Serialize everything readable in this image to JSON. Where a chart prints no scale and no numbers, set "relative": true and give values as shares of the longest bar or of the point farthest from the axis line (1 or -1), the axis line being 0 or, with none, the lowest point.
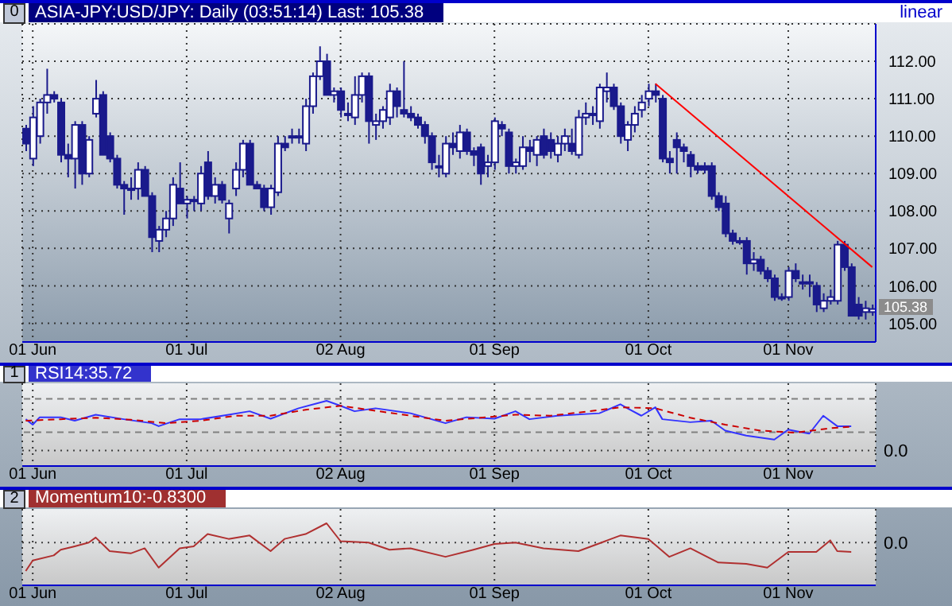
{
  "chart_data": [
    {
      "type": "candlestick",
      "title": "ASIA-JPY:USD/JPY: Daily (03:51:14) Last: 105.38",
      "color": "#1a1a8c",
      "grid": true,
      "categories": [
        null,
        "01 Jun",
        null,
        null,
        null,
        null,
        null,
        null,
        null,
        null,
        null,
        null,
        null,
        null,
        null,
        null,
        null,
        null,
        null,
        null,
        null,
        null,
        null,
        "01 Jul",
        null,
        null,
        null,
        null,
        null,
        null,
        null,
        null,
        null,
        null,
        null,
        null,
        null,
        null,
        null,
        null,
        null,
        null,
        null,
        null,
        null,
        "02 Aug",
        null,
        null,
        null,
        null,
        null,
        null,
        null,
        null,
        null,
        null,
        null,
        null,
        null,
        null,
        null,
        null,
        null,
        null,
        null,
        null,
        null,
        "01 Sep",
        null,
        null,
        null,
        null,
        null,
        null,
        null,
        null,
        null,
        null,
        null,
        null,
        null,
        null,
        null,
        null,
        null,
        null,
        null,
        null,
        null,
        "01 Oct",
        null,
        null,
        null,
        null,
        null,
        null,
        null,
        null,
        null,
        null,
        null,
        null,
        null,
        null,
        null,
        null,
        null,
        null,
        null,
        "01 Nov",
        null,
        null,
        null,
        null,
        null,
        null,
        null,
        null,
        null,
        null,
        null,
        null
      ],
      "ohlc": [
        [
          110.2,
          110.3,
          109.6,
          109.8
        ],
        [
          109.4,
          110.8,
          109.2,
          110.5
        ],
        [
          110.0,
          111.0,
          109.8,
          110.9
        ],
        [
          110.9,
          111.8,
          110.6,
          111.1
        ],
        [
          111.1,
          111.2,
          110.9,
          111.0
        ],
        [
          110.9,
          111.0,
          109.3,
          109.5
        ],
        [
          109.5,
          109.8,
          108.9,
          109.4
        ],
        [
          109.4,
          110.4,
          108.6,
          110.3
        ],
        [
          110.3,
          110.4,
          108.7,
          109.0
        ],
        [
          109.0,
          110.0,
          108.9,
          109.9
        ],
        [
          110.6,
          111.5,
          110.5,
          111.0
        ],
        [
          111.1,
          111.2,
          109.5,
          109.5
        ],
        [
          110.0,
          110.1,
          109.3,
          109.4
        ],
        [
          109.4,
          109.5,
          108.6,
          108.7
        ],
        [
          108.7,
          108.8,
          107.9,
          108.6
        ],
        [
          108.6,
          108.9,
          108.3,
          108.6
        ],
        [
          108.6,
          109.3,
          108.3,
          109.1
        ],
        [
          109.1,
          109.2,
          108.4,
          108.4
        ],
        [
          108.4,
          108.5,
          106.9,
          107.3
        ],
        [
          107.2,
          107.6,
          106.9,
          107.5
        ],
        [
          107.5,
          108.0,
          107.3,
          107.8
        ],
        [
          107.8,
          108.9,
          107.6,
          108.7
        ],
        [
          108.6,
          109.3,
          108.2,
          108.2
        ],
        [
          108.2,
          108.4,
          107.8,
          108.3
        ],
        [
          108.3,
          108.4,
          108.0,
          108.3
        ],
        [
          108.2,
          109.2,
          108.0,
          109.0
        ],
        [
          109.3,
          109.6,
          108.3,
          108.4
        ],
        [
          108.4,
          108.9,
          108.2,
          108.7
        ],
        [
          108.7,
          108.8,
          108.2,
          108.3
        ],
        [
          107.8,
          108.3,
          107.4,
          108.2
        ],
        [
          108.6,
          109.3,
          108.4,
          109.1
        ],
        [
          109.1,
          109.9,
          108.9,
          109.8
        ],
        [
          109.8,
          109.9,
          108.7,
          108.7
        ],
        [
          108.7,
          108.8,
          108.6,
          108.6
        ],
        [
          108.6,
          108.7,
          108.0,
          108.1
        ],
        [
          108.1,
          108.7,
          107.9,
          108.6
        ],
        [
          108.5,
          110.0,
          108.4,
          109.8
        ],
        [
          109.8,
          110.0,
          109.6,
          109.7
        ],
        [
          110.0,
          110.2,
          109.8,
          110.0
        ],
        [
          110.0,
          110.2,
          109.8,
          110.0
        ],
        [
          109.8,
          111.0,
          109.6,
          110.8
        ],
        [
          110.8,
          111.7,
          110.6,
          111.6
        ],
        [
          111.6,
          112.4,
          111.5,
          112.0
        ],
        [
          112.0,
          112.2,
          111.1,
          111.1
        ],
        [
          111.1,
          111.3,
          110.9,
          111.2
        ],
        [
          111.2,
          111.3,
          110.5,
          110.7
        ],
        [
          110.6,
          110.9,
          110.4,
          110.6
        ],
        [
          110.5,
          111.6,
          110.3,
          111.1
        ],
        [
          111.1,
          111.7,
          110.9,
          111.6
        ],
        [
          111.6,
          111.7,
          109.8,
          110.4
        ],
        [
          110.3,
          110.6,
          109.9,
          110.4
        ],
        [
          110.4,
          110.8,
          110.2,
          110.7
        ],
        [
          110.5,
          111.4,
          110.3,
          111.2
        ],
        [
          111.2,
          111.3,
          110.5,
          110.8
        ],
        [
          110.7,
          112.0,
          110.5,
          110.6
        ],
        [
          110.6,
          110.8,
          110.4,
          110.5
        ],
        [
          110.5,
          110.6,
          110.2,
          110.3
        ],
        [
          110.3,
          110.4,
          109.8,
          110.0
        ],
        [
          110.0,
          110.1,
          109.1,
          109.3
        ],
        [
          109.2,
          109.5,
          108.9,
          109.2
        ],
        [
          109.0,
          110.0,
          108.9,
          109.8
        ],
        [
          109.8,
          110.1,
          109.5,
          109.7
        ],
        [
          109.6,
          110.3,
          109.4,
          110.1
        ],
        [
          110.1,
          110.2,
          109.5,
          109.6
        ],
        [
          109.6,
          109.7,
          109.2,
          109.5
        ],
        [
          109.7,
          109.8,
          108.7,
          109.0
        ],
        [
          109.2,
          109.5,
          108.9,
          109.3
        ],
        [
          109.3,
          110.5,
          109.1,
          110.4
        ],
        [
          110.3,
          110.4,
          110.0,
          110.2
        ],
        [
          110.1,
          110.2,
          109.0,
          109.2
        ],
        [
          109.2,
          109.4,
          109.0,
          109.3
        ],
        [
          109.2,
          110.0,
          109.1,
          109.7
        ],
        [
          109.7,
          109.9,
          109.3,
          109.6
        ],
        [
          109.5,
          110.0,
          109.2,
          109.9
        ],
        [
          110.0,
          110.2,
          109.4,
          109.5
        ],
        [
          109.9,
          110.1,
          109.4,
          109.6
        ],
        [
          109.5,
          110.0,
          109.3,
          109.8
        ],
        [
          109.8,
          110.2,
          109.6,
          110.0
        ],
        [
          109.8,
          110.2,
          109.5,
          109.6
        ],
        [
          109.5,
          110.7,
          109.4,
          110.5
        ],
        [
          110.5,
          110.9,
          110.3,
          110.6
        ],
        [
          110.6,
          110.8,
          110.3,
          110.6
        ],
        [
          110.4,
          111.4,
          110.2,
          111.3
        ],
        [
          111.2,
          111.7,
          110.9,
          111.3
        ],
        [
          111.3,
          111.4,
          110.7,
          110.8
        ],
        [
          110.8,
          110.9,
          109.8,
          110.0
        ],
        [
          109.9,
          110.4,
          109.6,
          110.3
        ],
        [
          110.3,
          110.8,
          110.1,
          110.6
        ],
        [
          110.7,
          111.1,
          110.5,
          110.9
        ],
        [
          111.0,
          111.4,
          110.8,
          111.2
        ],
        [
          111.2,
          111.4,
          110.9,
          111.1
        ],
        [
          111.0,
          111.1,
          109.3,
          109.4
        ],
        [
          109.4,
          109.6,
          109.0,
          109.3
        ],
        [
          109.9,
          110.1,
          109.0,
          109.7
        ],
        [
          109.7,
          109.8,
          109.3,
          109.6
        ],
        [
          109.5,
          109.6,
          108.9,
          109.2
        ],
        [
          109.2,
          109.3,
          109.0,
          109.1
        ],
        [
          109.2,
          109.3,
          109.0,
          109.1
        ],
        [
          109.2,
          109.3,
          108.3,
          108.4
        ],
        [
          108.4,
          108.5,
          108.0,
          108.1
        ],
        [
          108.2,
          108.4,
          107.3,
          107.4
        ],
        [
          107.4,
          107.5,
          107.1,
          107.2
        ],
        [
          107.2,
          107.3,
          107.1,
          107.2
        ],
        [
          107.2,
          107.3,
          106.3,
          106.6
        ],
        [
          106.6,
          106.9,
          106.4,
          106.7
        ],
        [
          106.7,
          106.8,
          106.3,
          106.4
        ],
        [
          106.4,
          106.5,
          106.1,
          106.2
        ],
        [
          106.2,
          106.3,
          105.6,
          105.7
        ],
        [
          105.7,
          105.8,
          105.6,
          105.7
        ],
        [
          105.7,
          106.5,
          105.6,
          106.4
        ],
        [
          106.4,
          106.6,
          106.1,
          106.2
        ],
        [
          106.1,
          106.3,
          105.9,
          106.1
        ],
        [
          106.1,
          106.3,
          105.7,
          106.1
        ],
        [
          106.0,
          106.1,
          105.3,
          105.5
        ],
        [
          105.4,
          105.8,
          105.3,
          105.6
        ],
        [
          105.6,
          105.9,
          105.5,
          105.7
        ],
        [
          105.6,
          107.2,
          105.5,
          107.1
        ],
        [
          107.1,
          107.2,
          106.4,
          106.5
        ],
        [
          106.5,
          106.6,
          105.2,
          105.2
        ],
        [
          105.5,
          105.7,
          105.1,
          105.2
        ],
        [
          105.3,
          105.6,
          105.1,
          105.4
        ],
        [
          105.3,
          105.5,
          105.2,
          105.38
        ]
      ],
      "series": [
        {
          "type": "line",
          "color": "#ff0000",
          "values": [
            null,
            null,
            null,
            null,
            null,
            null,
            null,
            null,
            null,
            null,
            null,
            null,
            null,
            null,
            null,
            null,
            null,
            null,
            null,
            null,
            null,
            null,
            null,
            null,
            null,
            null,
            null,
            null,
            null,
            null,
            null,
            null,
            null,
            null,
            null,
            null,
            null,
            null,
            null,
            null,
            null,
            null,
            null,
            null,
            null,
            null,
            null,
            null,
            null,
            null,
            null,
            null,
            null,
            null,
            null,
            null,
            null,
            null,
            null,
            null,
            null,
            null,
            null,
            null,
            null,
            null,
            null,
            null,
            null,
            null,
            null,
            null,
            null,
            null,
            null,
            null,
            null,
            null,
            null,
            null,
            null,
            null,
            null,
            null,
            null,
            null,
            null,
            null,
            null,
            null,
            111.4,
            null,
            null,
            null,
            null,
            null,
            null,
            null,
            null,
            null,
            null,
            null,
            null,
            null,
            null,
            null,
            null,
            null,
            null,
            null,
            null,
            null,
            null,
            null,
            null,
            null,
            null,
            null,
            null,
            null,
            null,
            106.5
          ]
        }
      ],
      "ylim": [
        104.5,
        113
      ],
      "yticks": [
        {
          "value": 105,
          "label": "105.00"
        },
        {
          "value": 106,
          "label": "106.00"
        },
        {
          "value": 107,
          "label": "107.00"
        },
        {
          "value": 108,
          "label": "108.00"
        },
        {
          "value": 109,
          "label": "109.00"
        },
        {
          "value": 110,
          "label": "110.00"
        },
        {
          "value": 111,
          "label": "111.00"
        },
        {
          "value": 112,
          "label": "112.00"
        }
      ],
      "annotations": [
        "0",
        "linear",
        "105.38"
      ]
    },
    {
      "type": "line",
      "title": "RSI14:35.72",
      "relative": true,
      "grid": "x",
      "categories": [
        null,
        "01 Jun",
        null,
        null,
        null,
        null,
        null,
        null,
        null,
        null,
        null,
        null,
        null,
        null,
        null,
        null,
        null,
        null,
        null,
        null,
        null,
        null,
        null,
        "01 Jul",
        null,
        null,
        null,
        null,
        null,
        null,
        null,
        null,
        null,
        null,
        null,
        null,
        null,
        null,
        null,
        null,
        null,
        null,
        null,
        null,
        null,
        "02 Aug",
        null,
        null,
        null,
        null,
        null,
        null,
        null,
        null,
        null,
        null,
        null,
        null,
        null,
        null,
        null,
        null,
        null,
        null,
        null,
        null,
        null,
        "01 Sep",
        null,
        null,
        null,
        null,
        null,
        null,
        null,
        null,
        null,
        null,
        null,
        null,
        null,
        null,
        null,
        null,
        null,
        null,
        null,
        null,
        null,
        "01 Oct",
        null,
        null,
        null,
        null,
        null,
        null,
        null,
        null,
        null,
        null,
        null,
        null,
        null,
        null,
        null,
        null,
        null,
        null,
        null,
        "01 Nov",
        null,
        null,
        null,
        null,
        null,
        null,
        null,
        null,
        null,
        null,
        null,
        null
      ],
      "series": [
        {
          "color": "#3333ff",
          "values": [
            0.63,
            0.52,
            0.67,
            null,
            null,
            0.67,
            null,
            0.6,
            null,
            null,
            0.72,
            null,
            null,
            null,
            0.63,
            null,
            null,
            null,
            0.55,
            0.49,
            null,
            null,
            0.63,
            null,
            null,
            0.63,
            null,
            null,
            null,
            0.72,
            null,
            null,
            0.79,
            null,
            null,
            0.64,
            null,
            null,
            null,
            0.85,
            null,
            null,
            null,
            1.0,
            null,
            0.9,
            null,
            0.79,
            null,
            null,
            0.85,
            null,
            null,
            null,
            null,
            0.75,
            null,
            null,
            null,
            null,
            0.55,
            null,
            null,
            0.67,
            null,
            null,
            null,
            0.64,
            null,
            null,
            0.79,
            null,
            0.63,
            null,
            null,
            null,
            0.7,
            null,
            null,
            null,
            null,
            null,
            0.75,
            null,
            null,
            0.93,
            0.85,
            null,
            0.7,
            null,
            0.87,
            0.63,
            null,
            null,
            null,
            0.57,
            null,
            null,
            0.6,
            null,
            0.4,
            null,
            null,
            0.3,
            null,
            null,
            null,
            0.22,
            null,
            0.42,
            null,
            null,
            0.34,
            null,
            0.7,
            null,
            0.49,
            null,
            0.49,
            null,
            null,
            null
          ]
        },
        {
          "color": "#cc0000",
          "line_style": "dashed",
          "values": [
            0.6,
            null,
            null,
            null,
            null,
            0.63,
            null,
            null,
            null,
            null,
            0.66,
            null,
            null,
            null,
            null,
            0.62,
            null,
            null,
            null,
            null,
            0.55,
            null,
            null,
            null,
            null,
            0.6,
            null,
            null,
            null,
            null,
            0.7,
            null,
            null,
            null,
            null,
            0.7,
            null,
            null,
            null,
            null,
            0.82,
            null,
            null,
            null,
            null,
            0.9,
            null,
            null,
            null,
            null,
            0.8,
            null,
            null,
            null,
            null,
            0.7,
            null,
            null,
            null,
            null,
            0.6,
            null,
            null,
            null,
            null,
            0.66,
            null,
            null,
            null,
            null,
            0.72,
            null,
            null,
            null,
            null,
            0.7,
            null,
            null,
            null,
            null,
            0.78,
            null,
            null,
            null,
            null,
            0.87,
            null,
            null,
            null,
            null,
            0.85,
            null,
            null,
            null,
            null,
            0.66,
            null,
            null,
            null,
            null,
            0.52,
            null,
            null,
            null,
            null,
            0.4,
            null,
            null,
            null,
            null,
            0.36,
            null,
            null,
            null,
            null,
            0.45,
            null,
            null,
            0.48,
            null,
            null,
            null
          ]
        }
      ],
      "ref_lines": [
        {
          "axis": "y",
          "value": 0,
          "label": "0.0",
          "line_style": "dotted",
          "color": "#404040"
        },
        {
          "axis": "y",
          "value": 1.04,
          "line_style": "dashed",
          "color": "#808080"
        },
        {
          "axis": "y",
          "value": 0.37,
          "line_style": "dashed",
          "color": "#808080"
        }
      ],
      "annotations": [
        "1"
      ]
    },
    {
      "type": "line",
      "title": "Momentum10:-0.8300",
      "relative": true,
      "grid": "x",
      "categories": [
        null,
        "01 Jun",
        null,
        null,
        null,
        null,
        null,
        null,
        null,
        null,
        null,
        null,
        null,
        null,
        null,
        null,
        null,
        null,
        null,
        null,
        null,
        null,
        null,
        "01 Jul",
        null,
        null,
        null,
        null,
        null,
        null,
        null,
        null,
        null,
        null,
        null,
        null,
        null,
        null,
        null,
        null,
        null,
        null,
        null,
        null,
        null,
        "02 Aug",
        null,
        null,
        null,
        null,
        null,
        null,
        null,
        null,
        null,
        null,
        null,
        null,
        null,
        null,
        null,
        null,
        null,
        null,
        null,
        null,
        null,
        "01 Sep",
        null,
        null,
        null,
        null,
        null,
        null,
        null,
        null,
        null,
        null,
        null,
        null,
        null,
        null,
        null,
        null,
        null,
        null,
        null,
        null,
        null,
        "01 Oct",
        null,
        null,
        null,
        null,
        null,
        null,
        null,
        null,
        null,
        null,
        null,
        null,
        null,
        null,
        null,
        null,
        null,
        null,
        null,
        "01 Nov",
        null,
        null,
        null,
        null,
        null,
        null,
        null,
        null,
        null,
        null,
        null,
        null
      ],
      "series": [
        {
          "color": "#b03030",
          "values": [
            -1,
            -0.63,
            null,
            null,
            -0.45,
            -0.25,
            null,
            -0.13,
            null,
            0,
            0.18,
            null,
            -0.3,
            null,
            null,
            -0.38,
            null,
            -0.2,
            null,
            -0.88,
            null,
            null,
            -0.2,
            null,
            -0.13,
            null,
            0.3,
            null,
            null,
            0.13,
            null,
            null,
            0.25,
            null,
            null,
            -0.3,
            null,
            0.13,
            null,
            null,
            0.3,
            null,
            null,
            0.68,
            null,
            0.05,
            null,
            null,
            null,
            0,
            null,
            null,
            -0.25,
            null,
            null,
            -0.2,
            null,
            null,
            null,
            null,
            -0.5,
            null,
            null,
            null,
            -0.25,
            null,
            null,
            -0.05,
            null,
            null,
            0,
            null,
            null,
            null,
            -0.2,
            null,
            null,
            null,
            null,
            -0.3,
            null,
            null,
            null,
            null,
            null,
            0.25,
            null,
            null,
            null,
            0.13,
            null,
            null,
            -0.5,
            null,
            null,
            -0.2,
            null,
            null,
            null,
            -0.7,
            null,
            null,
            null,
            -0.75,
            null,
            null,
            -0.88,
            null,
            null,
            -0.33,
            null,
            null,
            null,
            -0.33,
            null,
            0.08,
            -0.3,
            null,
            -0.33,
            null,
            null,
            null
          ]
        }
      ],
      "ref_lines": [
        {
          "axis": "y",
          "value": 0,
          "label": "0.0",
          "line_style": "dotted",
          "color": "#404040"
        }
      ],
      "annotations": [
        "2"
      ]
    }
  ]
}
